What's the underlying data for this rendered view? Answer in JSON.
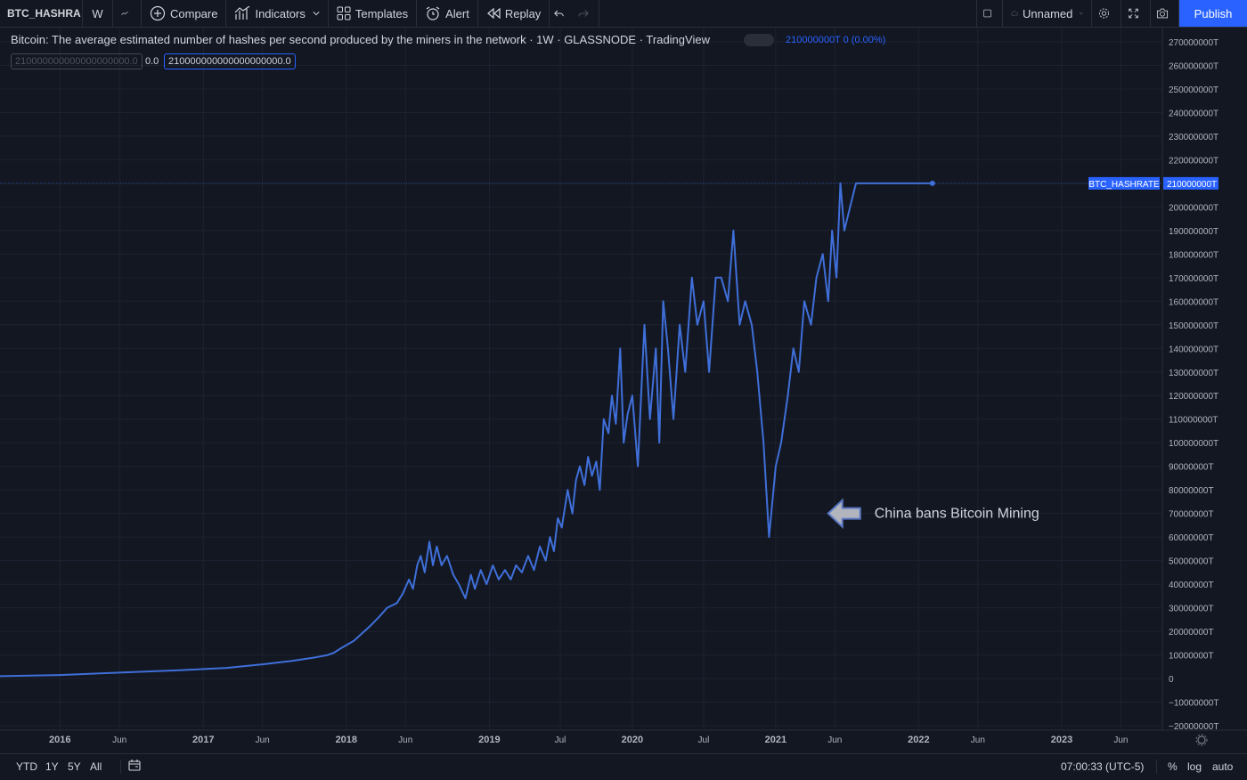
{
  "toolbar": {
    "symbol": "BTC_HASHRA",
    "interval": "W",
    "compare": "Compare",
    "indicators": "Indicators",
    "templates": "Templates",
    "alert": "Alert",
    "replay": "Replay",
    "layout_name": "Unnamed",
    "publish": "Publish"
  },
  "legend": {
    "title": "Bitcoin: The average estimated number of hashes per second produced by the miners in the network · 1W · GLASSNODE · TradingView",
    "value": "210000000T 0 (0.00%)",
    "input1": "210000000000000000000.0",
    "mid": "0.0",
    "input2": "210000000000000000000.0"
  },
  "bottom": {
    "ranges": [
      "YTD",
      "1Y",
      "5Y",
      "All"
    ],
    "time": "07:00:33 (UTC-5)",
    "percent": "%",
    "log": "log",
    "auto": "auto"
  },
  "colors": {
    "background": "#131722",
    "line": "#3f6fd9",
    "grid": "#1e2230",
    "accent": "#2962ff"
  },
  "chart_data": {
    "type": "line",
    "series": [
      {
        "name": "BTC_HASHRATE",
        "last_label": "210000000T"
      }
    ],
    "ylim": [
      -20000000,
      270000000
    ],
    "yticks": [
      -20000000,
      -10000000,
      0,
      10000000,
      20000000,
      30000000,
      40000000,
      50000000,
      60000000,
      70000000,
      80000000,
      90000000,
      100000000,
      110000000,
      120000000,
      130000000,
      140000000,
      150000000,
      160000000,
      170000000,
      180000000,
      190000000,
      200000000,
      210000000,
      220000000,
      230000000,
      240000000,
      250000000,
      260000000,
      270000000
    ],
    "ytick_labels": [
      "−20000000T",
      "−10000000T",
      "0",
      "10000000T",
      "20000000T",
      "30000000T",
      "40000000T",
      "50000000T",
      "60000000T",
      "70000000T",
      "80000000T",
      "90000000T",
      "100000000T",
      "110000000T",
      "120000000T",
      "130000000T",
      "140000000T",
      "150000000T",
      "160000000T",
      "170000000T",
      "180000000T",
      "190000000T",
      "200000000T",
      "210000000T",
      "220000000T",
      "230000000T",
      "240000000T",
      "250000000T",
      "260000000T",
      "270000000T"
    ],
    "xticks": [
      {
        "label": "2016",
        "date": "2016-01-01"
      },
      {
        "label": "Jun",
        "date": "2016-06-01"
      },
      {
        "label": "2017",
        "date": "2017-01-01"
      },
      {
        "label": "Jun",
        "date": "2017-06-01"
      },
      {
        "label": "2018",
        "date": "2018-01-01"
      },
      {
        "label": "Jun",
        "date": "2018-06-01"
      },
      {
        "label": "2019",
        "date": "2019-01-01"
      },
      {
        "label": "Jul",
        "date": "2019-07-01"
      },
      {
        "label": "2020",
        "date": "2020-01-01"
      },
      {
        "label": "Jul",
        "date": "2020-07-01"
      },
      {
        "label": "2021",
        "date": "2021-01-01"
      },
      {
        "label": "Jun",
        "date": "2021-06-01"
      },
      {
        "label": "2022",
        "date": "2022-01-01"
      },
      {
        "label": "Jun",
        "date": "2022-06-01"
      },
      {
        "label": "2023",
        "date": "2023-01-01"
      },
      {
        "label": "Jun",
        "date": "2023-06-01"
      }
    ],
    "xlim": [
      "2015-08-01",
      "2023-09-15"
    ],
    "x": [
      "2015-08-01",
      "2016-01-01",
      "2016-06-01",
      "2016-11-01",
      "2017-03-01",
      "2017-06-01",
      "2017-08-15",
      "2017-10-15",
      "2017-11-15",
      "2017-12-01",
      "2017-12-20",
      "2018-01-20",
      "2018-03-01",
      "2018-03-25",
      "2018-04-15",
      "2018-05-10",
      "2018-05-25",
      "2018-06-10",
      "2018-06-20",
      "2018-07-01",
      "2018-07-10",
      "2018-07-20",
      "2018-08-01",
      "2018-08-10",
      "2018-08-20",
      "2018-09-01",
      "2018-09-15",
      "2018-10-01",
      "2018-10-15",
      "2018-11-01",
      "2018-11-15",
      "2018-11-25",
      "2018-12-10",
      "2018-12-25",
      "2019-01-10",
      "2019-01-25",
      "2019-02-10",
      "2019-02-25",
      "2019-03-10",
      "2019-03-25",
      "2019-04-10",
      "2019-04-25",
      "2019-05-10",
      "2019-05-25",
      "2019-06-05",
      "2019-06-15",
      "2019-06-25",
      "2019-07-05",
      "2019-07-20",
      "2019-08-01",
      "2019-08-10",
      "2019-08-20",
      "2019-09-01",
      "2019-09-10",
      "2019-09-20",
      "2019-10-01",
      "2019-10-10",
      "2019-10-20",
      "2019-11-01",
      "2019-11-10",
      "2019-11-20",
      "2019-12-01",
      "2019-12-10",
      "2019-12-20",
      "2020-01-01",
      "2020-01-15",
      "2020-02-01",
      "2020-02-15",
      "2020-03-01",
      "2020-03-10",
      "2020-03-20",
      "2020-04-01",
      "2020-04-15",
      "2020-05-01",
      "2020-05-15",
      "2020-06-01",
      "2020-06-15",
      "2020-07-01",
      "2020-07-15",
      "2020-08-01",
      "2020-08-15",
      "2020-09-01",
      "2020-09-15",
      "2020-10-01",
      "2020-10-15",
      "2020-11-01",
      "2020-11-15",
      "2020-12-01",
      "2020-12-15",
      "2021-01-01",
      "2021-01-15",
      "2021-02-01",
      "2021-02-15",
      "2021-03-01",
      "2021-03-15",
      "2021-04-01",
      "2021-04-15",
      "2021-05-01",
      "2021-05-15",
      "2021-05-25",
      "2021-06-05",
      "2021-06-15",
      "2021-06-25",
      "2021-07-10",
      "2021-07-25",
      "2021-08-10",
      "2021-08-25",
      "2021-09-10",
      "2021-09-25",
      "2021-10-10",
      "2021-10-25",
      "2021-11-10",
      "2021-11-25",
      "2021-12-10",
      "2021-12-25",
      "2022-01-05",
      "2022-01-15",
      "2022-01-25",
      "2022-02-05"
    ],
    "values": [
      1000000,
      1500000,
      2500000,
      3500000,
      4500000,
      6000000,
      7500000,
      9000000,
      10000000,
      11000000,
      13000000,
      16000000,
      22000000,
      26000000,
      30000000,
      32000000,
      36000000,
      42000000,
      38000000,
      48000000,
      52000000,
      45000000,
      58000000,
      48000000,
      56000000,
      48000000,
      52000000,
      44000000,
      40000000,
      34000000,
      44000000,
      38000000,
      46000000,
      40000000,
      48000000,
      42000000,
      46000000,
      42000000,
      48000000,
      45000000,
      52000000,
      46000000,
      56000000,
      50000000,
      60000000,
      54000000,
      68000000,
      64000000,
      80000000,
      70000000,
      84000000,
      90000000,
      82000000,
      94000000,
      86000000,
      92000000,
      80000000,
      110000000,
      104000000,
      120000000,
      108000000,
      140000000,
      100000000,
      112000000,
      120000000,
      90000000,
      150000000,
      110000000,
      140000000,
      100000000,
      160000000,
      140000000,
      110000000,
      150000000,
      130000000,
      170000000,
      150000000,
      160000000,
      130000000,
      170000000,
      170000000,
      160000000,
      190000000,
      150000000,
      160000000,
      150000000,
      130000000,
      100000000,
      60000000,
      90000000,
      100000000,
      120000000,
      140000000,
      130000000,
      160000000,
      150000000,
      170000000,
      180000000,
      160000000,
      190000000,
      170000000,
      210000000,
      190000000,
      200000000,
      210000000,
      210000000,
      210000000,
      210000000,
      210000000,
      210000000,
      210000000,
      210000000,
      210000000,
      210000000,
      210000000,
      210000000,
      210000000,
      210000000,
      210000000
    ],
    "annotation": {
      "text": "China bans Bitcoin Mining",
      "date": "2021-09-01",
      "value": 70000000
    }
  }
}
